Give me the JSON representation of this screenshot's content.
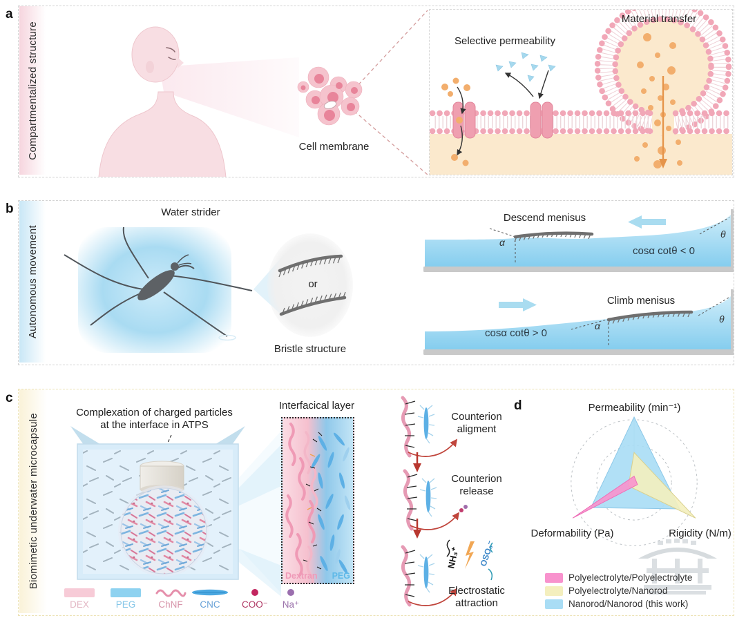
{
  "figure": {
    "panel_a": {
      "letter": "a",
      "strip_label": "Compartmentalized structure",
      "cell_membrane_label": "Cell membrane",
      "selective_permeability_label": "Selective permeability",
      "material_transfer_label": "Material transfer"
    },
    "panel_b": {
      "letter": "b",
      "strip_label": "Autonomous movement",
      "water_strider_label": "Water strider",
      "or_label": "or",
      "bristle_structure_label": "Bristle structure",
      "descend": {
        "title": "Descend menisus",
        "equation": "cosα cotθ < 0",
        "alpha": "α",
        "theta": "θ"
      },
      "climb": {
        "title": "Climb menisus",
        "equation": "cosα cotθ > 0",
        "alpha": "α",
        "theta": "θ"
      }
    },
    "panel_c": {
      "letter": "c",
      "strip_label": "Biomimetic underwater microcapsule",
      "complexation_title_line1": "Complexation of charged particles",
      "complexation_title_line2": "at the interface in ATPS",
      "interfacial_layer_label": "Interfacical layer",
      "dextran_label": "Dextran",
      "peg_label": "PEG",
      "steps": [
        {
          "line1": "Counterion",
          "line2": "aligment"
        },
        {
          "line1": "Counterion",
          "line2": "release"
        },
        {
          "line1": "Electrostatic",
          "line2": "attraction"
        }
      ],
      "chem_groups": {
        "ammonium": "NH₃⁺",
        "sulfate": "OSO₃⁻"
      },
      "legend": [
        {
          "label": "DEX",
          "color": "#f7cbd7"
        },
        {
          "label": "PEG",
          "color": "#8ed2f0"
        },
        {
          "label": "ChNF",
          "color": "#e58fab"
        },
        {
          "label": "CNC",
          "color": "#4aa7e0"
        },
        {
          "label": "COO⁻",
          "color": "#c2255f"
        },
        {
          "label": "Na⁺",
          "color": "#9b6fae"
        }
      ]
    },
    "panel_d": {
      "letter": "d"
    }
  },
  "chart_data": {
    "type": "radar",
    "axes": [
      "Permeability (min⁻¹)",
      "Rigidity (N/m)",
      "Deformability (Pa)"
    ],
    "axis_positions": {
      "top": "Permeability (min⁻¹)",
      "bottom_right": "Rigidity (N/m)",
      "bottom_left": "Deformability (Pa)"
    },
    "rings": [
      0.57,
      0.96
    ],
    "scale_note": "relative scale 0–1, unlabeled dashed rings",
    "series": [
      {
        "name": "Polyelectrolyte/Polyelectrolyte",
        "color": "#f892cd",
        "edge": "#ee6fb8",
        "values": [
          0.1,
          0.06,
          1.08
        ]
      },
      {
        "name": "Polyelectrolyte/Nanorod",
        "color": "#f4efbe",
        "edge": "#d9d08c",
        "values": [
          0.46,
          1.08,
          0.1
        ]
      },
      {
        "name": "Nanorod/Nanorod (this work)",
        "color": "#a9ddf5",
        "edge": "#8cc8e8",
        "values": [
          1.0,
          0.8,
          0.76
        ]
      }
    ],
    "legend_position": "bottom-left"
  }
}
